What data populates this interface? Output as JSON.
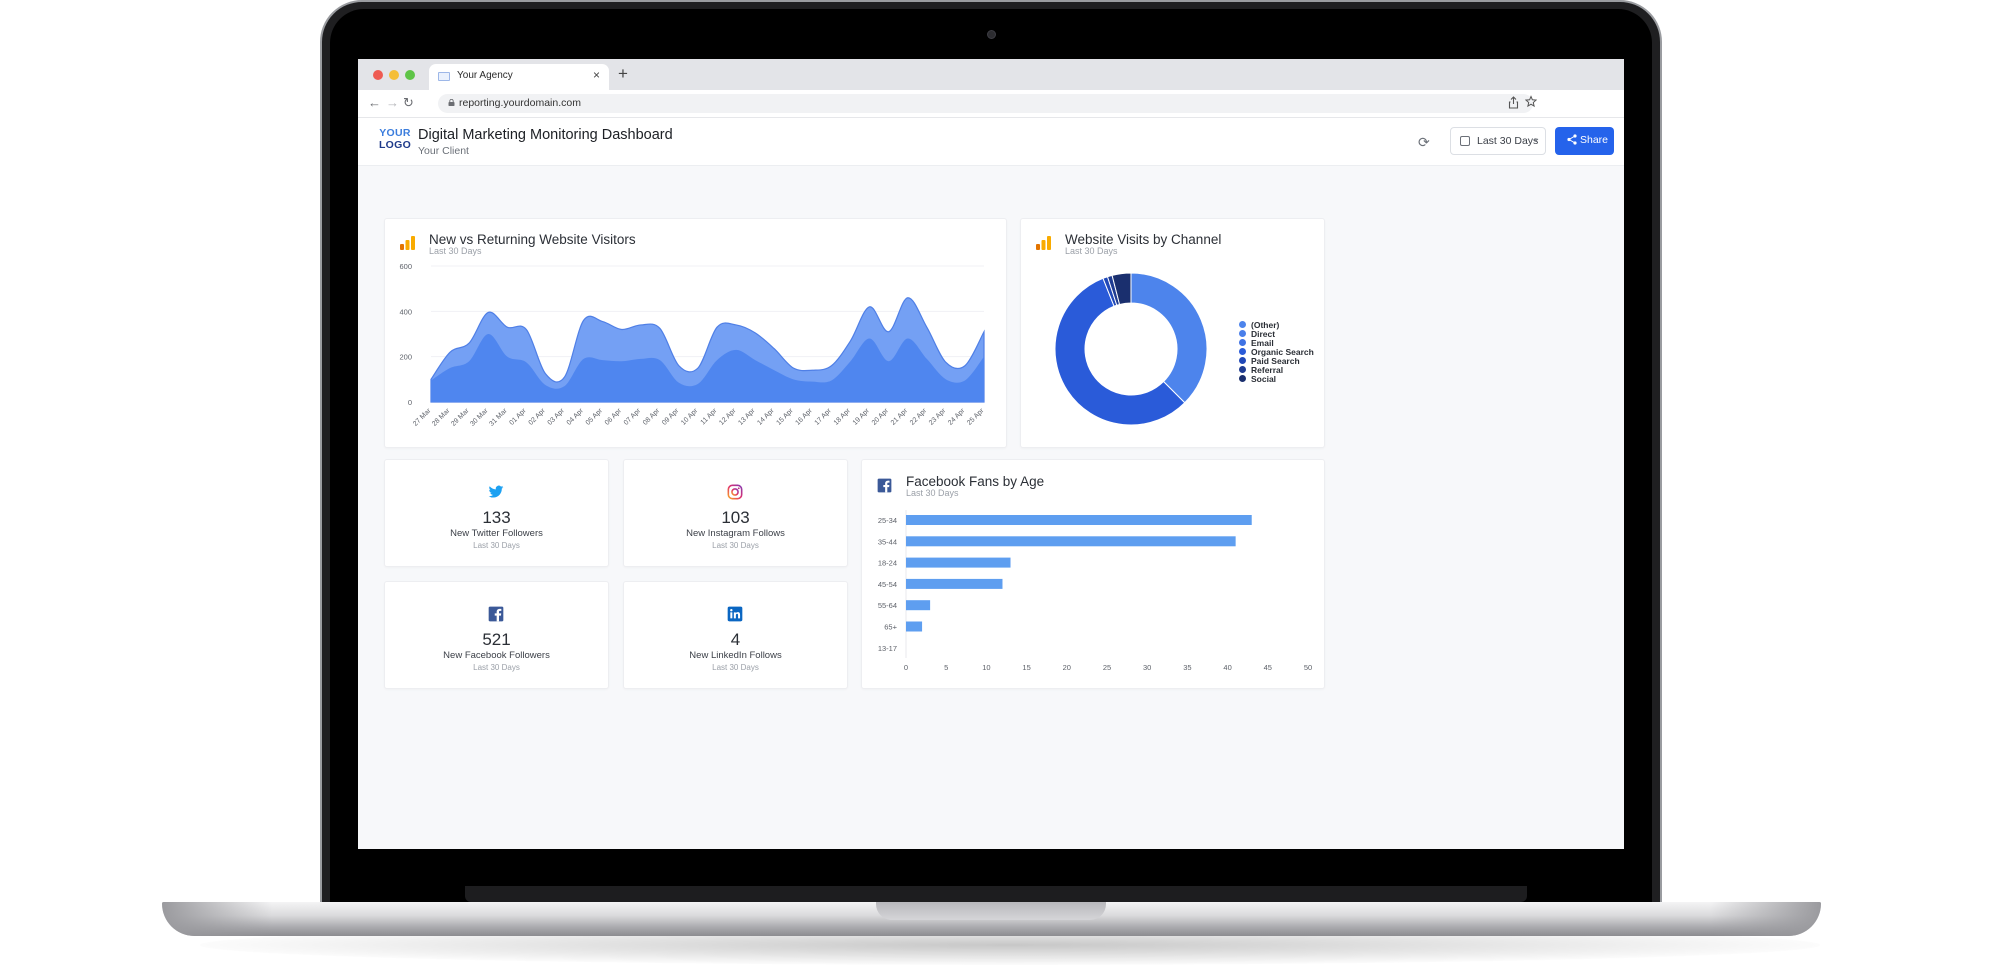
{
  "browser": {
    "tab_title": "Your Agency",
    "tab_close": "×",
    "new_tab": "+",
    "url": "reporting.yourdomain.com",
    "nav_back": "←",
    "nav_forward": "→",
    "nav_reload": "↻"
  },
  "header": {
    "logo_line1": "YOUR",
    "logo_line2": "LOGO",
    "title": "Digital Marketing Monitoring Dashboard",
    "client": "Your Client",
    "refresh_icon": "⟳",
    "date_range": "Last 30 Days",
    "chevron": "⌄",
    "share_icon": "≺",
    "share_label": "Share"
  },
  "colors": {
    "accent": "#2563eb",
    "area_returning": "#74a0f4",
    "area_new": "#4f86ef",
    "bar": "#5e9ef0"
  },
  "chart_data": [
    {
      "type": "area",
      "title": "New vs Returning Website Visitors",
      "subtitle": "Last 30 Days",
      "x": [
        "27 Mar",
        "28 Mar",
        "29 Mar",
        "30 Mar",
        "31 Mar",
        "01 Apr",
        "02 Apr",
        "03 Apr",
        "04 Apr",
        "05 Apr",
        "06 Apr",
        "07 Apr",
        "08 Apr",
        "09 Apr",
        "10 Apr",
        "11 Apr",
        "12 Apr",
        "13 Apr",
        "14 Apr",
        "15 Apr",
        "16 Apr",
        "17 Apr",
        "18 Apr",
        "19 Apr",
        "20 Apr",
        "21 Apr",
        "22 Apr",
        "23 Apr",
        "24 Apr",
        "25 Apr"
      ],
      "series": [
        {
          "values": [
            95,
            150,
            180,
            300,
            200,
            175,
            75,
            70,
            190,
            185,
            180,
            190,
            185,
            85,
            80,
            185,
            230,
            185,
            140,
            100,
            90,
            95,
            180,
            280,
            180,
            280,
            190,
            100,
            95,
            200
          ]
        },
        {
          "values": [
            100,
            220,
            260,
            395,
            330,
            320,
            125,
            110,
            360,
            355,
            320,
            340,
            325,
            160,
            150,
            330,
            340,
            305,
            235,
            150,
            140,
            160,
            270,
            420,
            310,
            460,
            330,
            175,
            160,
            310
          ]
        }
      ],
      "ylim": [
        0,
        600
      ],
      "yticks": [
        "0",
        "200",
        "400",
        "600"
      ]
    },
    {
      "type": "pie",
      "title": "Website Visits by Channel",
      "subtitle": "Last 30 Days",
      "labels": [
        "(Other)",
        "Direct",
        "Email",
        "Organic Search",
        "Paid Search",
        "Referral",
        "Social"
      ],
      "values": [
        37.5,
        0,
        0,
        56.5,
        1,
        1,
        4
      ],
      "colors": [
        "#4d84ec",
        "#4a7fea",
        "#3f72e4",
        "#2a5bd9",
        "#2048b8",
        "#1f3c92",
        "#1a2f6e"
      ]
    },
    {
      "type": "bar",
      "title": "Facebook Fans by Age",
      "subtitle": "Last 30 Days",
      "categories": [
        "25-34",
        "35-44",
        "18-24",
        "45-54",
        "55-64",
        "65+",
        "13-17"
      ],
      "values": [
        43,
        41,
        13,
        12,
        3,
        2,
        0
      ],
      "xlim": [
        0,
        50
      ],
      "xticks": [
        "0",
        "5",
        "10",
        "15",
        "20",
        "25",
        "30",
        "35",
        "40",
        "45",
        "50"
      ]
    }
  ],
  "kpis": {
    "twitter": {
      "value": "133",
      "label": "New Twitter Followers",
      "sub": "Last 30 Days",
      "icon": "twitter-icon"
    },
    "instagram": {
      "value": "103",
      "label": "New Instagram Follows",
      "sub": "Last 30 Days",
      "icon": "instagram-icon"
    },
    "facebook": {
      "value": "521",
      "label": "New Facebook Followers",
      "sub": "Last 30 Days",
      "icon": "facebook-icon"
    },
    "linkedin": {
      "value": "4",
      "label": "New LinkedIn Follows",
      "sub": "Last 30 Days",
      "icon": "linkedin-icon"
    }
  }
}
